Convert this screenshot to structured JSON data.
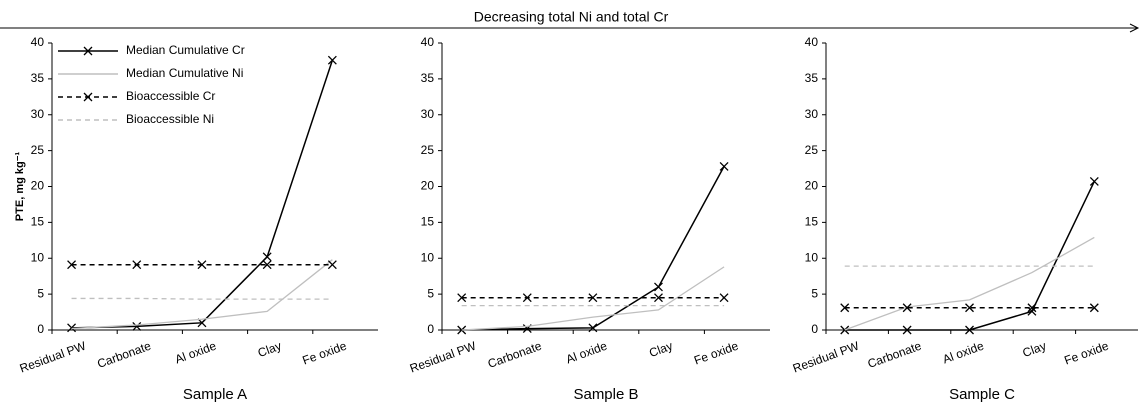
{
  "annotation": "Decreasing total Ni and total Cr",
  "chart_data": [
    {
      "type": "line",
      "title": "Sample A",
      "ylabel": "PTE, mg kg⁻¹",
      "categories": [
        "Residual PW",
        "Carbonate",
        "Al oxide",
        "Clay",
        "Fe oxide"
      ],
      "ylim": [
        0,
        40
      ],
      "yticks": [
        0,
        5,
        10,
        15,
        20,
        25,
        30,
        35,
        40
      ],
      "legend": "upper left",
      "series": [
        {
          "name": "Median Cumulative Cr",
          "color": "#000000",
          "dash": false,
          "marker": "x",
          "values": [
            0.3,
            0.5,
            1.0,
            10.2,
            37.6
          ]
        },
        {
          "name": "Median Cumulative Ni",
          "color": "#bfbfbf",
          "dash": false,
          "values": [
            0.2,
            0.7,
            1.5,
            2.6,
            9.8
          ]
        },
        {
          "name": "Bioaccessible Cr",
          "color": "#000000",
          "dash": true,
          "marker": "x",
          "values": [
            9.1,
            9.1,
            9.1,
            9.1,
            9.1
          ]
        },
        {
          "name": "Bioaccessible Ni",
          "color": "#bfbfbf",
          "dash": true,
          "values": [
            4.4,
            4.4,
            4.3,
            4.3,
            4.3
          ]
        }
      ]
    },
    {
      "type": "line",
      "title": "Sample B",
      "categories": [
        "Residual PW",
        "Carbonate",
        "Al oxide",
        "Clay",
        "Fe oxide"
      ],
      "ylim": [
        0,
        40
      ],
      "yticks": [
        0,
        5,
        10,
        15,
        20,
        25,
        30,
        35,
        40
      ],
      "series": [
        {
          "color": "#000000",
          "dash": false,
          "marker": "x",
          "values": [
            0,
            0.2,
            0.3,
            6.0,
            22.8
          ]
        },
        {
          "color": "#bfbfbf",
          "dash": false,
          "values": [
            0,
            0.5,
            1.8,
            2.8,
            8.8
          ]
        },
        {
          "color": "#000000",
          "dash": true,
          "marker": "x",
          "values": [
            4.5,
            4.5,
            4.5,
            4.5,
            4.5
          ]
        },
        {
          "color": "#bfbfbf",
          "dash": true,
          "values": [
            3.4,
            3.4,
            3.4,
            3.4,
            3.4
          ]
        }
      ]
    },
    {
      "type": "line",
      "title": "Sample C",
      "categories": [
        "Residual PW",
        "Carbonate",
        "Al oxide",
        "Clay",
        "Fe oxide"
      ],
      "ylim": [
        0,
        40
      ],
      "yticks": [
        0,
        5,
        10,
        15,
        20,
        25,
        30,
        35,
        40
      ],
      "series": [
        {
          "color": "#000000",
          "dash": false,
          "marker": "x",
          "values": [
            0,
            0,
            0,
            2.6,
            20.7
          ]
        },
        {
          "color": "#bfbfbf",
          "dash": false,
          "values": [
            0,
            3.2,
            4.2,
            8.0,
            12.9
          ]
        },
        {
          "color": "#000000",
          "dash": true,
          "marker": "x",
          "values": [
            3.1,
            3.1,
            3.1,
            3.1,
            3.1
          ]
        },
        {
          "color": "#bfbfbf",
          "dash": true,
          "values": [
            8.9,
            8.9,
            8.9,
            8.9,
            8.9
          ]
        }
      ]
    }
  ]
}
